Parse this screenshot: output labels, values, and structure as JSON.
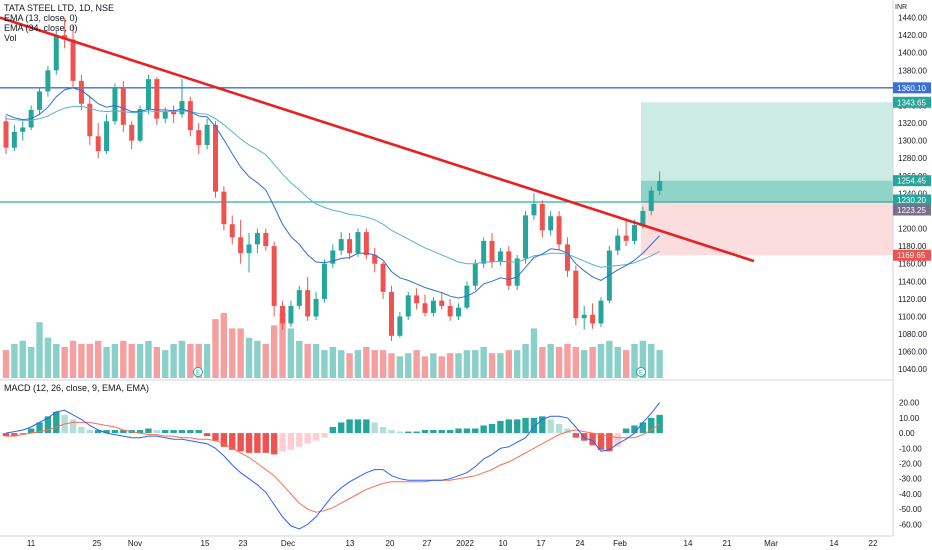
{
  "header": {
    "title": "TATA STEEL LTD, 1D, NSE",
    "ema1": "EMA (13, close, 0)",
    "ema2": "EMA (34, close, 0)",
    "vol": "Vol",
    "macd": "MACD (12, 26, close, 9, EMA, EMA)"
  },
  "colors": {
    "up": "#26a69a",
    "down": "#ef5350",
    "vol_up": "#8ad0c8",
    "vol_down": "#f5a0a0",
    "ema13": "#2f6fd0",
    "ema34": "#5ab0d4",
    "trend": "#e82020",
    "resistance": "#3a6fd8",
    "support": "#26b0a0",
    "target_zone": "#bfe6df",
    "stop_zone": "#fbd5d5",
    "macd_line": "#2962ff",
    "signal_line": "#ff6d4d"
  },
  "chart_data": [
    {
      "type": "candlestick",
      "title": "TATA STEEL LTD, 1D, NSE",
      "ylabel": "INR",
      "ylim": [
        1030,
        1460
      ],
      "y_ticks": [
        "1440.00",
        "1420.00",
        "1400.00",
        "1380.00",
        "1360.00",
        "1340.00",
        "1320.00",
        "1300.00",
        "1280.00",
        "1260.00",
        "1240.00",
        "1220.00",
        "1200.00",
        "1180.00",
        "1160.00",
        "1140.00",
        "1120.00",
        "1100.00",
        "1080.00",
        "1060.00",
        "1040.00"
      ],
      "x_ticks": [
        "11",
        "25",
        "Nov",
        "15",
        "23",
        "Dec",
        "13",
        "20",
        "27",
        "2022",
        "10",
        "17",
        "24",
        "Feb",
        "14",
        "21",
        "Mar",
        "14",
        "22"
      ],
      "candles": [
        [
          1322,
          1328,
          1285,
          1292
        ],
        [
          1292,
          1318,
          1288,
          1310
        ],
        [
          1310,
          1322,
          1300,
          1315
        ],
        [
          1315,
          1340,
          1312,
          1335
        ],
        [
          1335,
          1360,
          1330,
          1356
        ],
        [
          1356,
          1385,
          1350,
          1380
        ],
        [
          1380,
          1425,
          1375,
          1420
        ],
        [
          1420,
          1440,
          1405,
          1415
        ],
        [
          1415,
          1432,
          1360,
          1368
        ],
        [
          1368,
          1375,
          1335,
          1342
        ],
        [
          1342,
          1350,
          1295,
          1305
        ],
        [
          1305,
          1320,
          1280,
          1288
        ],
        [
          1288,
          1330,
          1285,
          1322
        ],
        [
          1322,
          1365,
          1318,
          1360
        ],
        [
          1360,
          1368,
          1310,
          1318
        ],
        [
          1318,
          1322,
          1290,
          1300
        ],
        [
          1300,
          1340,
          1298,
          1336
        ],
        [
          1336,
          1375,
          1330,
          1370
        ],
        [
          1370,
          1372,
          1318,
          1325
        ],
        [
          1325,
          1338,
          1320,
          1333
        ],
        [
          1333,
          1340,
          1320,
          1330
        ],
        [
          1330,
          1370,
          1326,
          1345
        ],
        [
          1345,
          1350,
          1305,
          1312
        ],
        [
          1312,
          1320,
          1285,
          1295
        ],
        [
          1295,
          1325,
          1290,
          1318
        ],
        [
          1318,
          1322,
          1235,
          1242
        ],
        [
          1242,
          1248,
          1198,
          1205
        ],
        [
          1205,
          1215,
          1182,
          1190
        ],
        [
          1190,
          1210,
          1160,
          1172
        ],
        [
          1172,
          1195,
          1150,
          1182
        ],
        [
          1182,
          1200,
          1172,
          1195
        ],
        [
          1195,
          1200,
          1175,
          1180
        ],
        [
          1180,
          1185,
          1100,
          1112
        ],
        [
          1112,
          1118,
          1085,
          1092
        ],
        [
          1092,
          1118,
          1088,
          1112
        ],
        [
          1112,
          1135,
          1108,
          1130
        ],
        [
          1130,
          1145,
          1095,
          1100
        ],
        [
          1100,
          1128,
          1096,
          1120
        ],
        [
          1120,
          1165,
          1116,
          1160
        ],
        [
          1160,
          1182,
          1155,
          1175
        ],
        [
          1175,
          1196,
          1170,
          1188
        ],
        [
          1188,
          1195,
          1165,
          1172
        ],
        [
          1172,
          1200,
          1168,
          1196
        ],
        [
          1196,
          1200,
          1165,
          1170
        ],
        [
          1170,
          1178,
          1150,
          1160
        ],
        [
          1160,
          1162,
          1120,
          1128
        ],
        [
          1128,
          1135,
          1072,
          1078
        ],
        [
          1078,
          1105,
          1076,
          1100
        ],
        [
          1100,
          1128,
          1096,
          1124
        ],
        [
          1124,
          1132,
          1108,
          1115
        ],
        [
          1115,
          1125,
          1100,
          1104
        ],
        [
          1104,
          1122,
          1100,
          1118
        ],
        [
          1118,
          1128,
          1108,
          1112
        ],
        [
          1112,
          1120,
          1095,
          1100
        ],
        [
          1100,
          1115,
          1096,
          1110
        ],
        [
          1110,
          1140,
          1108,
          1135
        ],
        [
          1135,
          1165,
          1130,
          1160
        ],
        [
          1160,
          1190,
          1155,
          1186
        ],
        [
          1186,
          1195,
          1155,
          1162
        ],
        [
          1162,
          1178,
          1158,
          1174
        ],
        [
          1174,
          1180,
          1130,
          1135
        ],
        [
          1135,
          1170,
          1130,
          1166
        ],
        [
          1166,
          1220,
          1160,
          1215
        ],
        [
          1215,
          1240,
          1210,
          1228
        ],
        [
          1228,
          1232,
          1190,
          1198
        ],
        [
          1198,
          1220,
          1192,
          1214
        ],
        [
          1214,
          1220,
          1175,
          1182
        ],
        [
          1182,
          1190,
          1145,
          1152
        ],
        [
          1152,
          1158,
          1090,
          1098
        ],
        [
          1098,
          1112,
          1085,
          1102
        ],
        [
          1102,
          1115,
          1086,
          1092
        ],
        [
          1092,
          1122,
          1088,
          1118
        ],
        [
          1118,
          1180,
          1115,
          1175
        ],
        [
          1175,
          1200,
          1170,
          1192
        ],
        [
          1192,
          1210,
          1180,
          1186
        ],
        [
          1186,
          1210,
          1182,
          1204
        ],
        [
          1204,
          1225,
          1200,
          1220
        ],
        [
          1220,
          1248,
          1215,
          1243
        ],
        [
          1243,
          1265,
          1238,
          1254
        ]
      ],
      "volume_up": [
        false,
        true,
        true,
        true,
        true,
        true,
        true,
        false,
        false,
        false,
        false,
        false,
        true,
        true,
        false,
        false,
        true,
        true,
        false,
        true,
        true,
        true,
        false,
        false,
        true,
        false,
        false,
        false,
        false,
        true,
        true,
        false,
        false,
        false,
        true,
        true,
        false,
        true,
        true,
        true,
        true,
        false,
        true,
        false,
        false,
        false,
        false,
        true,
        true,
        false,
        false,
        true,
        false,
        false,
        true,
        true,
        true,
        true,
        false,
        true,
        false,
        true,
        true,
        true,
        false,
        true,
        false,
        false,
        false,
        true,
        false,
        true,
        true,
        true,
        false,
        true,
        true,
        true,
        true
      ],
      "volume_rel": [
        0.45,
        0.55,
        0.6,
        0.5,
        0.9,
        0.65,
        0.55,
        0.5,
        0.6,
        0.55,
        0.55,
        0.6,
        0.5,
        0.55,
        0.6,
        0.55,
        0.55,
        0.6,
        0.5,
        0.45,
        0.55,
        0.6,
        0.55,
        0.55,
        0.55,
        0.95,
        1.05,
        0.8,
        0.8,
        0.65,
        0.6,
        0.55,
        0.85,
        1.05,
        0.8,
        0.6,
        0.55,
        0.55,
        0.45,
        0.5,
        0.45,
        0.4,
        0.45,
        0.5,
        0.45,
        0.45,
        0.4,
        0.35,
        0.4,
        0.45,
        0.35,
        0.4,
        0.35,
        0.4,
        0.4,
        0.45,
        0.45,
        0.5,
        0.4,
        0.4,
        0.45,
        0.45,
        0.55,
        0.8,
        0.5,
        0.55,
        0.5,
        0.55,
        0.5,
        0.45,
        0.5,
        0.55,
        0.6,
        0.5,
        0.45,
        0.55,
        0.6,
        0.55,
        0.45
      ],
      "ema13": [
        1330,
        1326,
        1324,
        1325,
        1330,
        1338,
        1350,
        1358,
        1360,
        1357,
        1350,
        1342,
        1338,
        1340,
        1337,
        1333,
        1333,
        1336,
        1335,
        1335,
        1334,
        1336,
        1333,
        1328,
        1327,
        1316,
        1301,
        1285,
        1270,
        1259,
        1252,
        1244,
        1225,
        1205,
        1191,
        1182,
        1170,
        1162,
        1161,
        1163,
        1166,
        1167,
        1172,
        1172,
        1170,
        1164,
        1151,
        1144,
        1141,
        1137,
        1133,
        1130,
        1127,
        1123,
        1121,
        1123,
        1128,
        1137,
        1140,
        1144,
        1142,
        1145,
        1156,
        1167,
        1171,
        1177,
        1176,
        1172,
        1160,
        1152,
        1145,
        1141,
        1147,
        1153,
        1158,
        1164,
        1172,
        1182,
        1192
      ],
      "ema34": [
        1325,
        1324,
        1323,
        1323,
        1325,
        1328,
        1333,
        1337,
        1339,
        1339,
        1337,
        1334,
        1333,
        1334,
        1333,
        1332,
        1332,
        1334,
        1333,
        1333,
        1333,
        1334,
        1333,
        1331,
        1330,
        1325,
        1318,
        1310,
        1302,
        1295,
        1290,
        1284,
        1273,
        1262,
        1252,
        1244,
        1235,
        1228,
        1224,
        1221,
        1219,
        1216,
        1215,
        1213,
        1210,
        1205,
        1198,
        1193,
        1188,
        1183,
        1178,
        1174,
        1170,
        1166,
        1162,
        1160,
        1160,
        1162,
        1162,
        1163,
        1162,
        1162,
        1165,
        1169,
        1170,
        1172,
        1172,
        1171,
        1167,
        1163,
        1159,
        1156,
        1157,
        1158,
        1159,
        1161,
        1165,
        1169,
        1174
      ],
      "trendline": {
        "from": [
          0,
          1440
        ],
        "to": [
          100,
          1163
        ]
      },
      "levels": [
        {
          "label": "1360.10",
          "value": 1360.1,
          "color": "#3a6fd8"
        },
        {
          "label": "1343.65",
          "value": 1343.65,
          "color": "#26a69a"
        },
        {
          "label": "1254.45",
          "value": 1254.45,
          "color": "#26a69a"
        },
        {
          "label": "1230.20",
          "value": 1230.2,
          "color": "#26a69a"
        },
        {
          "label": "1223.25",
          "value": 1223.25,
          "color": "#7a6f8a"
        },
        {
          "label": "1169.65",
          "value": 1169.65,
          "color": "#ef5350"
        }
      ],
      "position": {
        "entry": 1230.2,
        "target": 1343.65,
        "stop": 1169.65
      }
    },
    {
      "type": "bar",
      "title": "MACD (12, 26, close, 9, EMA, EMA)",
      "ylim": [
        -65,
        27
      ],
      "y_ticks": [
        "20.00",
        "10.00",
        "0.00",
        "-10.00",
        "-20.00",
        "-30.00",
        "-40.00",
        "-50.00",
        "-60.00"
      ],
      "histogram": [
        -2,
        -2,
        0,
        3,
        7,
        11,
        14,
        12,
        9,
        4,
        2,
        2,
        2,
        2,
        2,
        2,
        2,
        3,
        2,
        2,
        2,
        2,
        2,
        2,
        -2,
        -5,
        -9,
        -11,
        -12,
        -13,
        -13,
        -13,
        -14,
        -12,
        -11,
        -9,
        -7,
        -5,
        -3,
        4,
        7,
        9,
        9,
        9,
        7,
        4,
        2,
        1,
        1,
        1,
        2,
        2,
        2,
        2,
        3,
        3,
        3,
        5,
        6,
        8,
        9,
        9,
        10,
        10,
        11,
        9,
        6,
        3,
        -3,
        -5,
        -8,
        -11,
        -12,
        -9,
        3,
        5,
        7,
        10,
        12
      ],
      "macd": [
        0,
        1,
        2,
        4,
        7,
        10,
        14,
        15,
        12,
        9,
        5,
        2,
        0,
        -1,
        -2,
        -3,
        -3,
        -2,
        -2,
        -3,
        -4,
        -4,
        -5,
        -6,
        -7,
        -10,
        -15,
        -21,
        -26,
        -30,
        -34,
        -39,
        -47,
        -55,
        -61,
        -63,
        -60,
        -55,
        -48,
        -41,
        -36,
        -32,
        -29,
        -26,
        -24,
        -24,
        -28,
        -30,
        -31,
        -31,
        -31,
        -31,
        -31,
        -30,
        -28,
        -26,
        -22,
        -17,
        -14,
        -10,
        -9,
        -6,
        -3,
        4,
        9,
        11,
        11,
        10,
        4,
        -3,
        -5,
        -12,
        -11,
        -7,
        -4,
        0,
        7,
        13,
        20
      ],
      "signal": [
        -2,
        -2,
        -1,
        0,
        1,
        2,
        4,
        6,
        7,
        7,
        7,
        6,
        5,
        4,
        2,
        1,
        0,
        -1,
        -1,
        -2,
        -2,
        -3,
        -3,
        -4,
        -4,
        -5,
        -7,
        -10,
        -13,
        -16,
        -20,
        -24,
        -28,
        -34,
        -40,
        -46,
        -50,
        -52,
        -51,
        -49,
        -46,
        -43,
        -40,
        -37,
        -35,
        -33,
        -32,
        -32,
        -32,
        -32,
        -32,
        -31,
        -31,
        -31,
        -30,
        -29,
        -28,
        -26,
        -24,
        -21,
        -19,
        -16,
        -13,
        -10,
        -7,
        -4,
        -1,
        1,
        2,
        1,
        0,
        -1,
        -2,
        -3,
        -3,
        -3,
        -1,
        2,
        6
      ]
    }
  ]
}
